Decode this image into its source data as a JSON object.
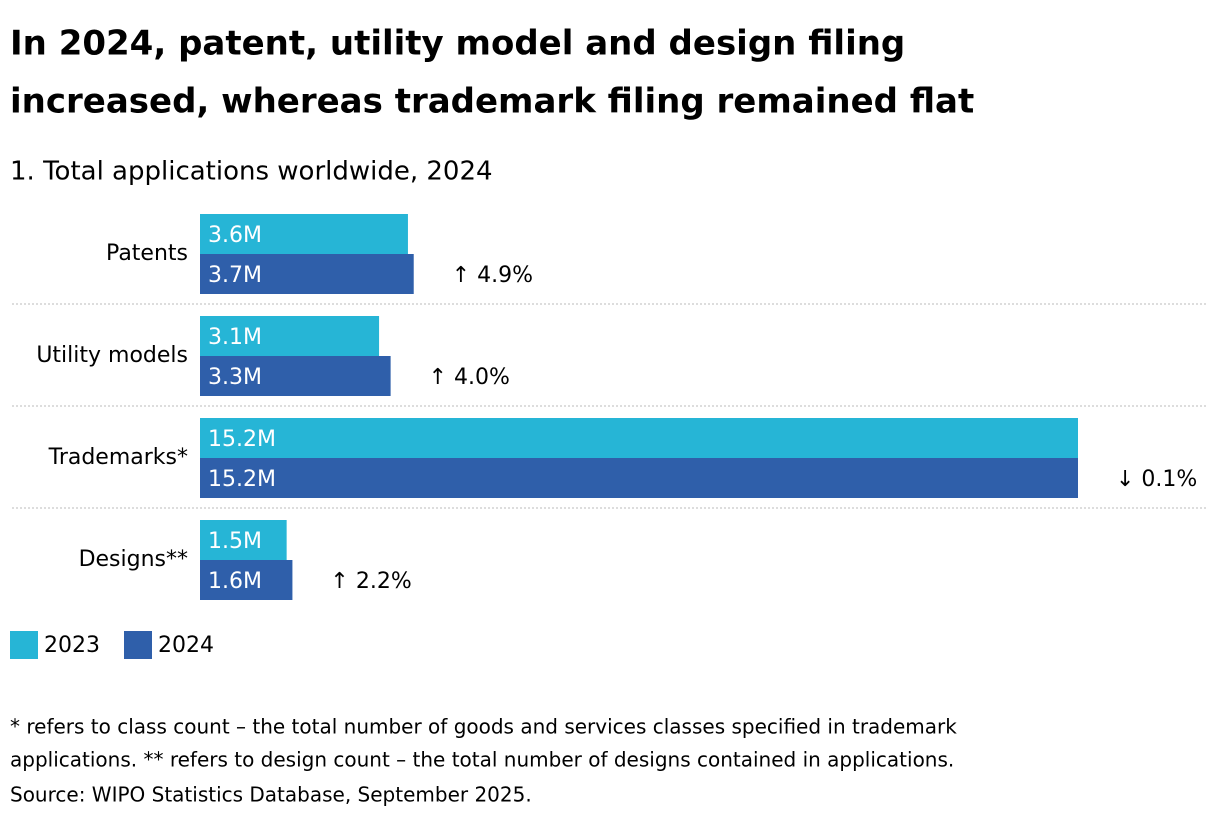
{
  "chart_data": {
    "type": "bar",
    "orientation": "horizontal",
    "title": [
      "In 2024, patent, utility model and design filing",
      "increased, whereas trademark filing remained flat"
    ],
    "subtitle": "1. Total applications worldwide, 2024",
    "categories": [
      "Patents",
      "Utility models",
      "Trademarks*",
      "Designs**"
    ],
    "series": [
      {
        "name": "2023",
        "color": "#26b5d6",
        "values": [
          3.6,
          3.1,
          15.2,
          1.5
        ],
        "value_labels": [
          "3.6M",
          "3.1M",
          "15.2M",
          "1.5M"
        ]
      },
      {
        "name": "2024",
        "color": "#2f5faa",
        "values": [
          3.7,
          3.3,
          15.2,
          1.6
        ],
        "value_labels": [
          "3.7M",
          "3.3M",
          "15.2M",
          "1.6M"
        ]
      }
    ],
    "annotations": [
      "↑ 4.9%",
      "↑ 4.0%",
      "↓ 0.1%",
      "↑ 2.2%"
    ],
    "footnote": [
      "* refers to class count – the total number of goods and services classes specified in trademark",
      "applications. ** refers to design count – the total number of designs contained in applications.",
      "Source: WIPO Statistics Database, September 2025."
    ]
  }
}
